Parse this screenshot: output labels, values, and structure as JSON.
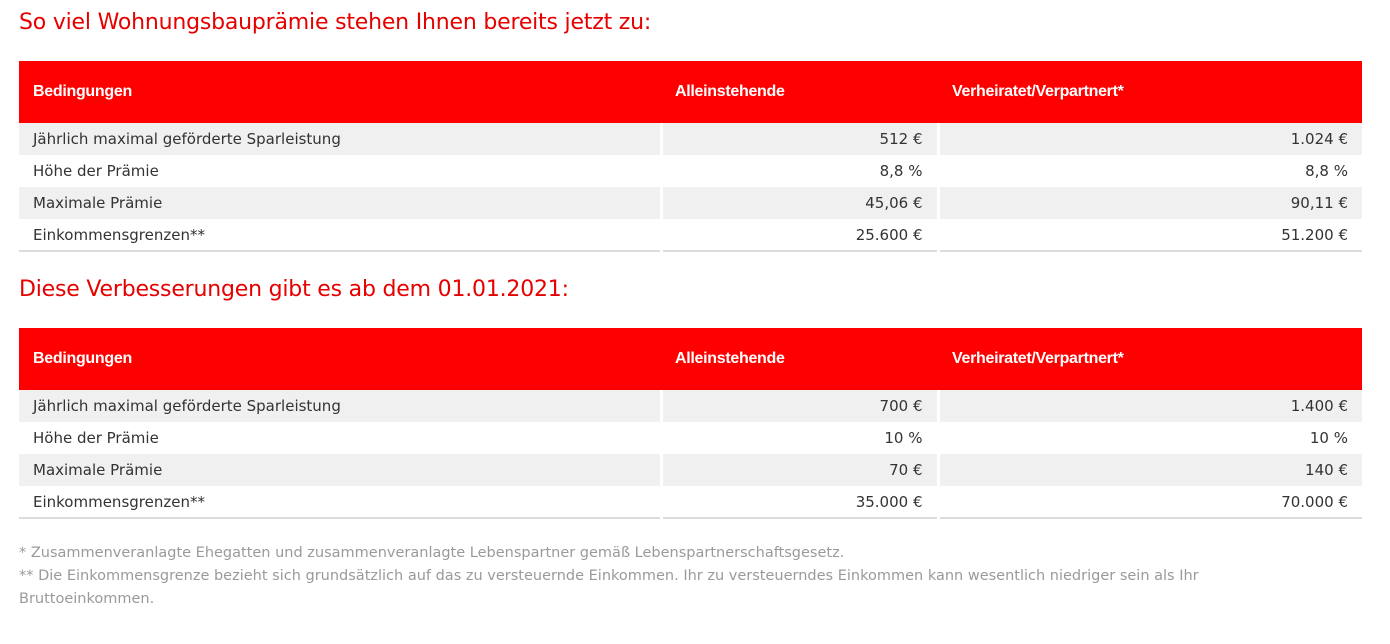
{
  "section1": {
    "title": "So viel Wohnungsbauprämie stehen Ihnen bereits jetzt zu:",
    "headers": [
      "Bedingungen",
      "Alleinstehende",
      "Verheiratet/Verpartnert*"
    ],
    "rows": [
      [
        "Jährlich maximal geförderte Sparleistung",
        "512 €",
        "1.024 €"
      ],
      [
        "Höhe der Prämie",
        "8,8 %",
        "8,8 %"
      ],
      [
        "Maximale Prämie",
        "45,06 €",
        "90,11 €"
      ],
      [
        "Einkommensgrenzen**",
        "25.600 €",
        "51.200 €"
      ]
    ]
  },
  "section2": {
    "title": "Diese Verbesserungen gibt es ab dem 01.01.2021:",
    "headers": [
      "Bedingungen",
      "Alleinstehende",
      "Verheiratet/Verpartnert*"
    ],
    "rows": [
      [
        "Jährlich maximal geförderte Sparleistung",
        "700 €",
        "1.400 €"
      ],
      [
        "Höhe der Prämie",
        "10 %",
        "10 %"
      ],
      [
        "Maximale Prämie",
        "70 €",
        "140 €"
      ],
      [
        "Einkommensgrenzen**",
        "35.000 €",
        "70.000 €"
      ]
    ]
  },
  "footnotes": [
    "* Zusammenveranlagte Ehegatten und zusammenveranlagte Lebenspartner gemäß Lebenspartnerschaftsgesetz.",
    "** Die Einkommensgrenze bezieht sich grundsätzlich auf das zu versteuernde Einkommen. Ihr zu versteuerndes Einkommen kann wesentlich niedriger sein als Ihr Bruttoeinkommen."
  ],
  "colors": {
    "accent": "#ff0000",
    "title_red": "#e60000",
    "row_alt": "#f0f0f0",
    "footnote_gray": "#9a9a9a"
  }
}
